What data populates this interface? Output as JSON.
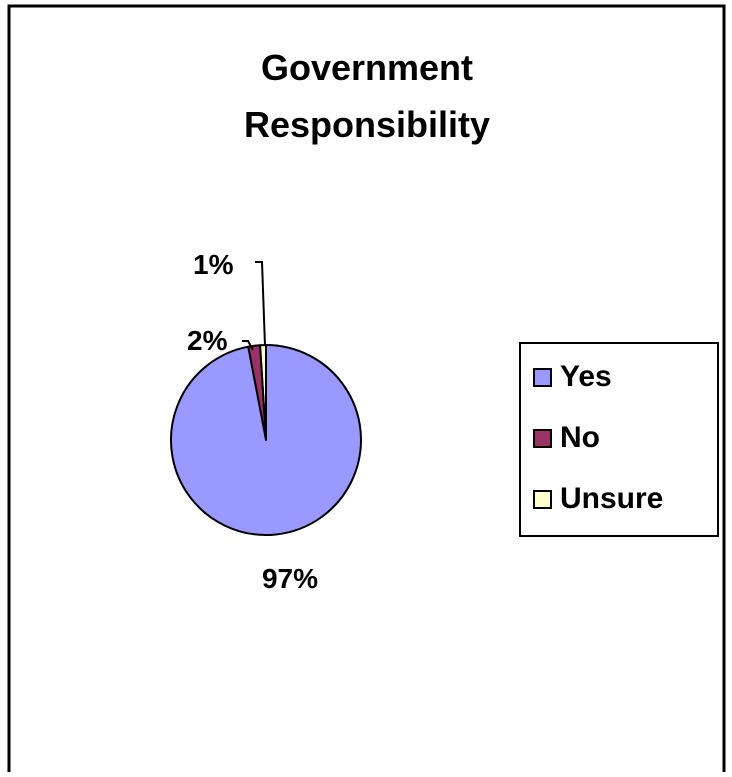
{
  "chart_data": {
    "type": "pie",
    "title_lines": [
      "Government",
      "Responsibility"
    ],
    "slices": [
      {
        "label": "Yes",
        "value": 97,
        "display": "97%",
        "color": "#9999FF"
      },
      {
        "label": "No",
        "value": 2,
        "display": "2%",
        "color": "#993366"
      },
      {
        "label": "Unsure",
        "value": 1,
        "display": "1%",
        "color": "#FFFFCC"
      }
    ],
    "legend_position": "right",
    "legend": [
      "Yes",
      "No",
      "Unsure"
    ]
  }
}
